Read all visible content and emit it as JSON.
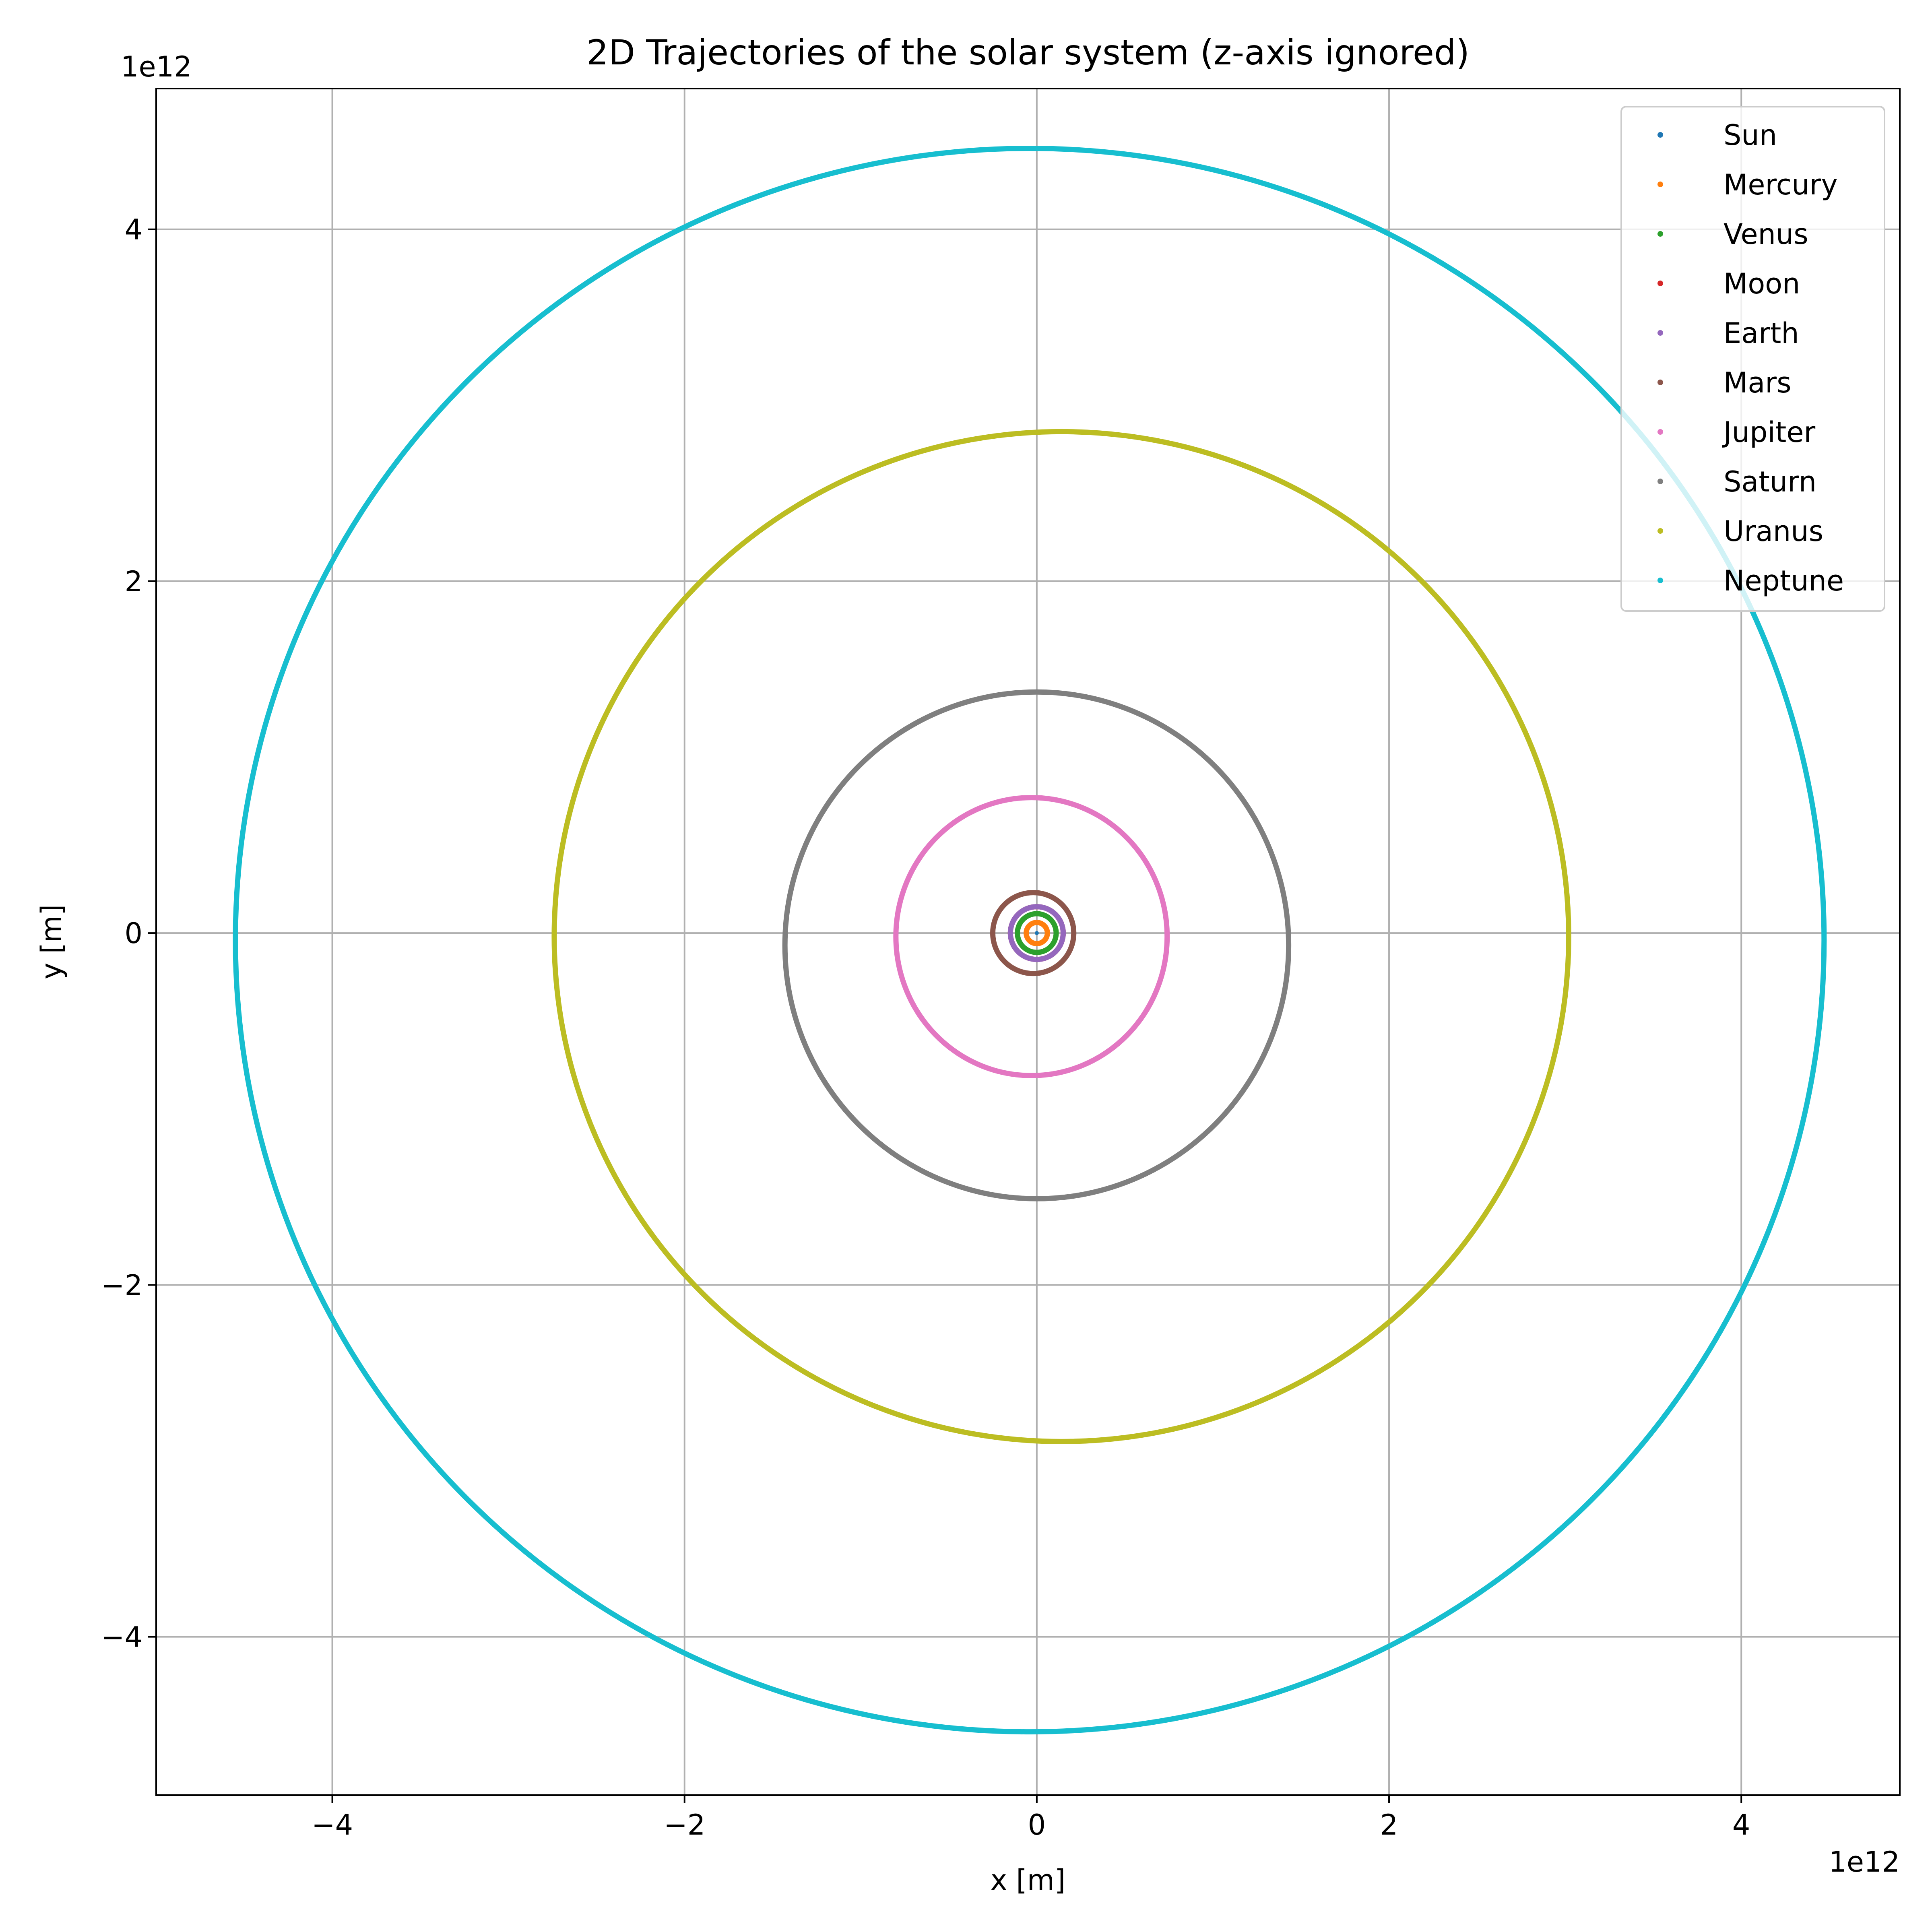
{
  "chart_data": {
    "type": "scatter",
    "title": "2D Trajectories of the solar system (z-axis ignored)",
    "xlabel": "x [m]",
    "ylabel": "y [m]",
    "x_offset_text": "1e12",
    "y_offset_text": "1e12",
    "xlim": [
      -5.0,
      4.9
    ],
    "ylim": [
      -4.9,
      4.8
    ],
    "xticks": [
      -4,
      -2,
      0,
      2,
      4
    ],
    "yticks": [
      -4,
      -2,
      0,
      2,
      4
    ],
    "xtick_labels": [
      "−4",
      "−2",
      "0",
      "2",
      "4"
    ],
    "ytick_labels": [
      "−4",
      "−2",
      "0",
      "2",
      "4"
    ],
    "grid": true,
    "legend_position": "top-right",
    "series": [
      {
        "name": "Sun",
        "color": "#1f77b4",
        "orbit": {
          "cx": 0.0,
          "cy": 0.0,
          "rx": 0.004,
          "ry": 0.004
        }
      },
      {
        "name": "Mercury",
        "color": "#ff7f0e",
        "orbit": {
          "cx": 0.0,
          "cy": 0.0,
          "rx": 0.06,
          "ry": 0.06
        }
      },
      {
        "name": "Venus",
        "color": "#2ca02c",
        "orbit": {
          "cx": 0.0,
          "cy": 0.0,
          "rx": 0.11,
          "ry": 0.11
        }
      },
      {
        "name": "Moon",
        "color": "#d62728",
        "orbit": {
          "cx": 0.0,
          "cy": 0.0,
          "rx": 0.15,
          "ry": 0.15
        }
      },
      {
        "name": "Earth",
        "color": "#9467bd",
        "orbit": {
          "cx": 0.0,
          "cy": 0.0,
          "rx": 0.15,
          "ry": 0.15
        }
      },
      {
        "name": "Mars",
        "color": "#8c564b",
        "orbit": {
          "cx": -0.02,
          "cy": 0.0,
          "rx": 0.23,
          "ry": 0.23
        }
      },
      {
        "name": "Jupiter",
        "color": "#e377c2",
        "orbit": {
          "cx": -0.03,
          "cy": -0.02,
          "rx": 0.77,
          "ry": 0.79
        }
      },
      {
        "name": "Saturn",
        "color": "#7f7f7f",
        "orbit": {
          "cx": 0.0,
          "cy": -0.07,
          "rx": 1.43,
          "ry": 1.44
        }
      },
      {
        "name": "Uranus",
        "color": "#bcbd22",
        "orbit": {
          "cx": 0.14,
          "cy": -0.02,
          "rx": 2.88,
          "ry": 2.87
        }
      },
      {
        "name": "Neptune",
        "color": "#17becf",
        "orbit": {
          "cx": -0.04,
          "cy": -0.04,
          "rx": 4.51,
          "ry": 4.5
        }
      }
    ]
  }
}
